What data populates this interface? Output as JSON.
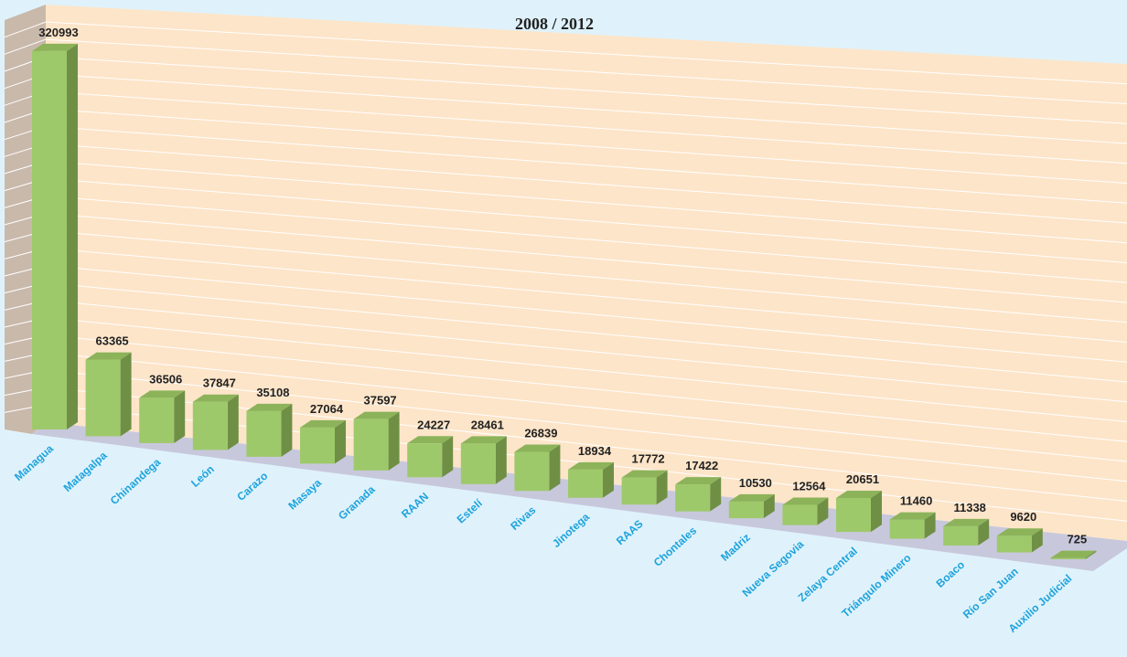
{
  "chart_data": {
    "type": "bar3d",
    "title": "2008 / 2012",
    "categories": [
      "Managua",
      "Matagalpa",
      "Chinandega",
      "León",
      "Carazo",
      "Masaya",
      "Granada",
      "RAAN",
      "Estelí",
      "Rivas",
      "Jinotega",
      "RAAS",
      "Chontales",
      "Madriz",
      "Nueva Segovia",
      "Zelaya Central",
      "Triángulo Minero",
      "Boaco",
      "Río San Juan",
      "Auxilio Judicial"
    ],
    "values": [
      320993,
      63365,
      36506,
      37847,
      35108,
      27064,
      37597,
      24227,
      28461,
      26839,
      18934,
      17772,
      17422,
      10530,
      12564,
      20651,
      11460,
      11338,
      9620,
      725
    ],
    "color": "#9ec96b"
  }
}
